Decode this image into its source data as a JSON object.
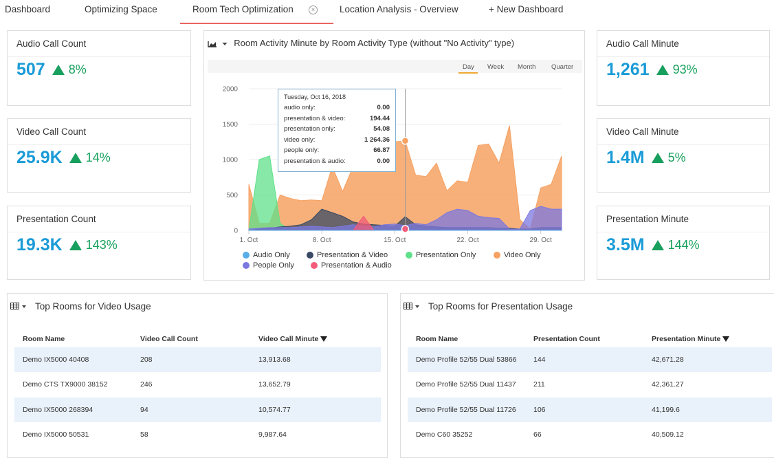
{
  "tabs": [
    {
      "label": "Dashboard"
    },
    {
      "label": "Optimizing Space"
    },
    {
      "label": "Room Tech Optimization",
      "active": true
    },
    {
      "label": "Location Analysis - Overview"
    },
    {
      "label": "+ New Dashboard"
    }
  ],
  "kpis": {
    "audio_call_count": {
      "title": "Audio Call Count",
      "value": "507",
      "change": "8%"
    },
    "video_call_count": {
      "title": "Video Call Count",
      "value": "25.9K",
      "change": "14%"
    },
    "presentation_count": {
      "title": "Presentation Count",
      "value": "19.3K",
      "change": "143%"
    },
    "audio_call_minute": {
      "title": "Audio Call Minute",
      "value": "1,261",
      "change": "93%"
    },
    "video_call_minute": {
      "title": "Video Call Minute",
      "value": "1.4M",
      "change": "5%"
    },
    "presentation_minute": {
      "title": "Presentation Minute",
      "value": "3.5M",
      "change": "144%"
    }
  },
  "colors": {
    "accent": "#1a9bd7",
    "positive": "#17a05d",
    "tab_active": "#e8665f",
    "row_alt": "#e9f1fa"
  },
  "chart_data": {
    "type": "area",
    "title": "Room Activity Minute by Room Activity Type (without \"No Activity\" type)",
    "ranges": [
      "Day",
      "Week",
      "Month",
      "Quarter"
    ],
    "selected_range": "Day",
    "x": [
      1,
      2,
      3,
      4,
      5,
      6,
      7,
      8,
      9,
      10,
      11,
      12,
      13,
      14,
      15,
      16,
      17,
      18,
      19,
      20,
      21,
      22,
      23,
      24,
      25,
      26,
      27,
      28,
      29,
      30,
      31
    ],
    "xticks": [
      "1. Oct",
      "8. Oct",
      "15. Oct",
      "22. Oct",
      "29. Oct"
    ],
    "xtick_values": [
      1,
      8,
      15,
      22,
      29
    ],
    "ylim": [
      0,
      2000
    ],
    "yticks": [
      0,
      500,
      1000,
      1500,
      2000
    ],
    "grid": true,
    "legend_position": "bottom",
    "series": [
      {
        "name": "Audio Only",
        "color": "#5aaee8",
        "values": [
          0,
          0,
          0,
          0,
          0,
          0,
          0,
          0,
          0,
          0,
          0,
          0,
          0,
          0,
          0,
          0,
          0,
          0,
          0,
          0,
          0,
          0,
          0,
          0,
          0,
          0,
          0,
          0,
          0,
          0,
          0
        ]
      },
      {
        "name": "Presentation & Video",
        "color": "#3a4a66",
        "values": [
          0,
          20,
          30,
          50,
          60,
          80,
          150,
          300,
          250,
          200,
          120,
          90,
          80,
          70,
          60,
          194,
          80,
          60,
          50,
          40,
          40,
          40,
          40,
          40,
          30,
          30,
          20,
          20,
          40,
          40,
          40
        ]
      },
      {
        "name": "Presentation Only",
        "color": "#5fe08a",
        "values": [
          0,
          1000,
          1050,
          100,
          0,
          0,
          0,
          0,
          0,
          0,
          0,
          0,
          0,
          0,
          0,
          54,
          0,
          0,
          0,
          0,
          0,
          0,
          0,
          0,
          0,
          0,
          0,
          0,
          0,
          0,
          0
        ]
      },
      {
        "name": "Video Only",
        "color": "#f6a263",
        "values": [
          650,
          100,
          100,
          500,
          450,
          420,
          430,
          420,
          900,
          550,
          900,
          850,
          850,
          1260,
          1250,
          1264,
          780,
          760,
          950,
          560,
          700,
          680,
          1200,
          1220,
          950,
          1480,
          150,
          20,
          600,
          650,
          1050
        ]
      },
      {
        "name": "People Only",
        "color": "#7b78e0",
        "values": [
          20,
          30,
          40,
          40,
          40,
          50,
          60,
          50,
          40,
          60,
          80,
          60,
          50,
          80,
          90,
          67,
          100,
          80,
          150,
          250,
          300,
          280,
          200,
          180,
          170,
          20,
          20,
          280,
          340,
          300,
          300
        ]
      },
      {
        "name": "Presentation & Audio",
        "color": "#f25c7a",
        "values": [
          0,
          0,
          0,
          0,
          0,
          0,
          0,
          0,
          0,
          0,
          0,
          200,
          0,
          0,
          0,
          0,
          0,
          0,
          0,
          0,
          0,
          0,
          0,
          0,
          0,
          0,
          0,
          0,
          0,
          0,
          0
        ]
      }
    ],
    "tooltip": {
      "date": "Tuesday, Oct 16, 2018",
      "rows": [
        {
          "label": "audio only:",
          "value": "0.00"
        },
        {
          "label": "presentation & video:",
          "value": "194.44"
        },
        {
          "label": "presentation only:",
          "value": "54.08"
        },
        {
          "label": "video only:",
          "value": "1 264.36"
        },
        {
          "label": "people only:",
          "value": "66.87"
        },
        {
          "label": "presentation & audio:",
          "value": "0.00"
        }
      ]
    }
  },
  "video_table": {
    "title": "Top Rooms for Video Usage",
    "headers": [
      "Room Name",
      "Video Call Count",
      "Video Call Minute"
    ],
    "rows": [
      [
        "Demo IX5000 40408",
        "208",
        "13,913.68"
      ],
      [
        "Demo CTS TX9000 38152",
        "246",
        "13,652.79"
      ],
      [
        "Demo IX5000 268394",
        "94",
        "10,574.77"
      ],
      [
        "Demo IX5000 50531",
        "58",
        "9,987.64"
      ]
    ]
  },
  "presentation_table": {
    "title": "Top Rooms for Presentation Usage",
    "headers": [
      "Room Name",
      "Presentation Count",
      "Presentation Minute"
    ],
    "rows": [
      [
        "Demo Profile 52/55 Dual 53866",
        "144",
        "42,671.28"
      ],
      [
        "Demo Profile 52/55 Dual 11437",
        "211",
        "42,361.27"
      ],
      [
        "Demo Profile 52/55 Dual 11726",
        "106",
        "41,199.6"
      ],
      [
        "Demo C60 35252",
        "66",
        "40,509.12"
      ]
    ]
  }
}
